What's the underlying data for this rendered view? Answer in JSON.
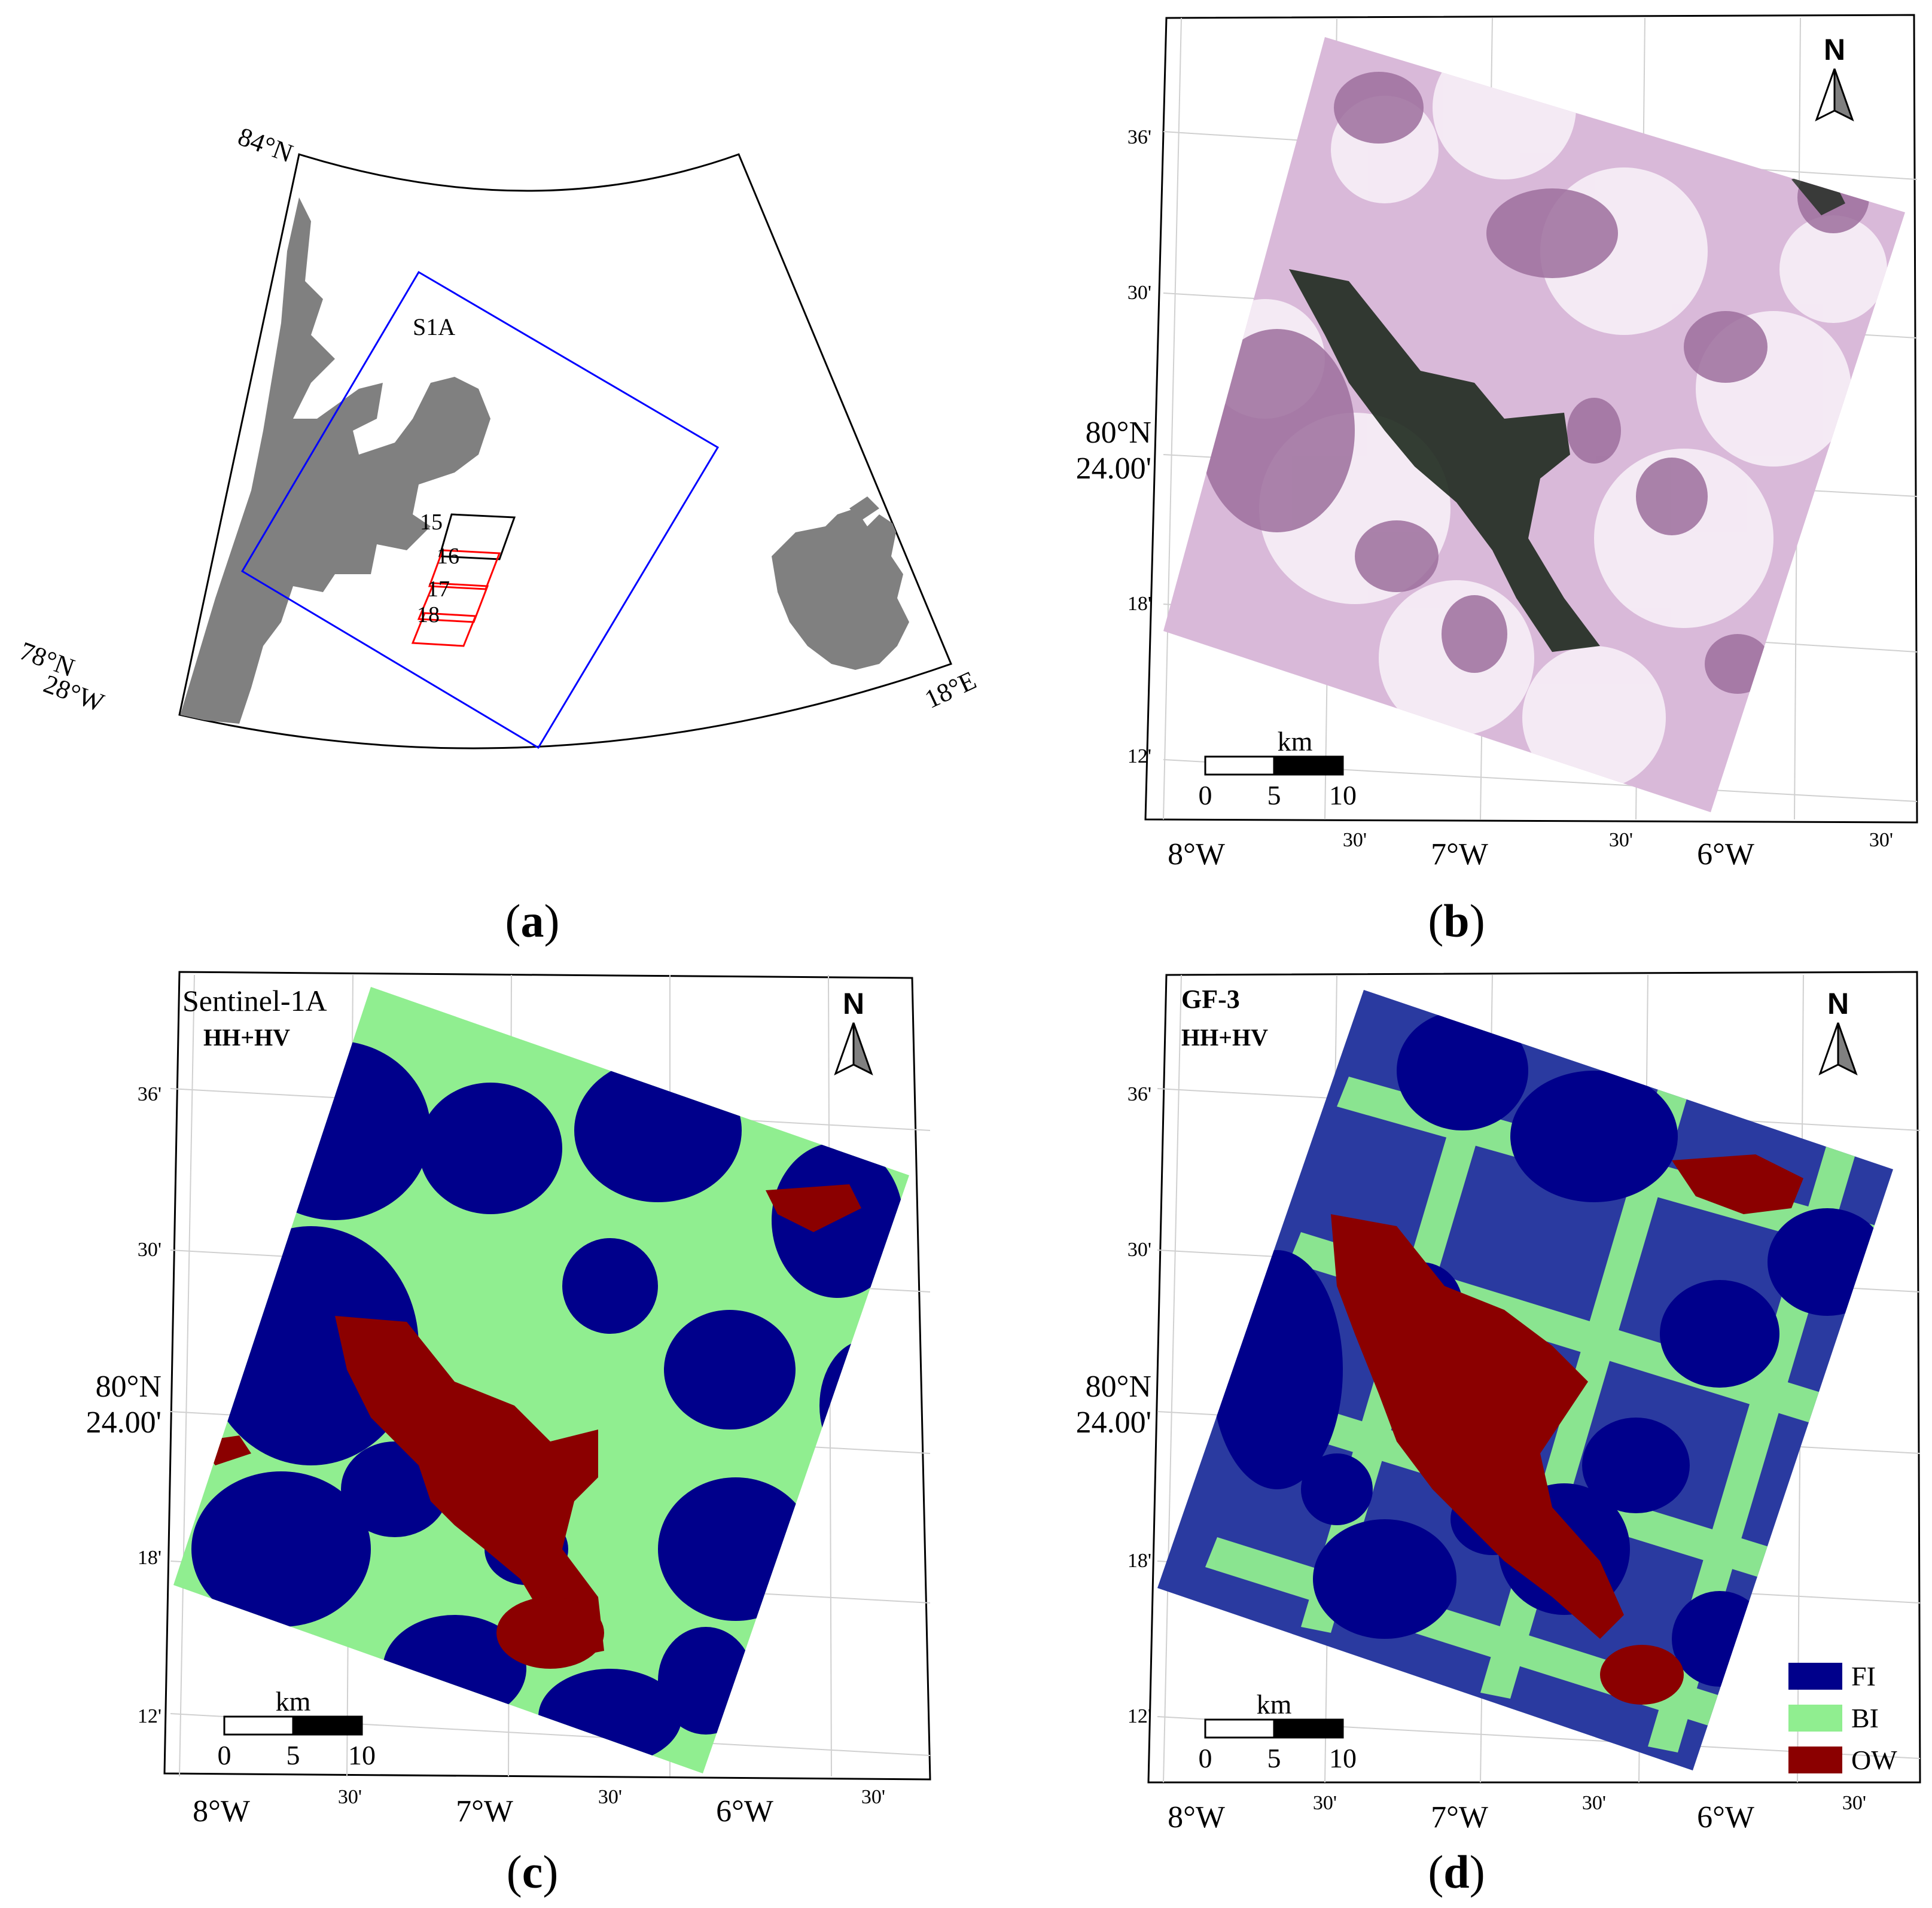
{
  "panels": {
    "a": {
      "label": "a",
      "lat_top": "84°N",
      "lat_bottom": "78°N",
      "lon_left": "28°W",
      "lon_right": "18°E",
      "footprint_label": "S1A",
      "gf3_scenes": [
        "15",
        "16",
        "17",
        "18"
      ],
      "colors": {
        "land": "#808080",
        "s1a_frame": "#0000ff",
        "scene_first": "#000000",
        "scene_rest": "#ff0000"
      }
    },
    "b": {
      "label": "b",
      "north": "N",
      "lat_ticks": [
        "36'",
        "30'",
        "18'",
        "12'"
      ],
      "lat_major_line1": "80°N",
      "lat_major_line2": "24.00'",
      "lon_ticks": [
        "8°W",
        "30'",
        "7°W",
        "30'",
        "6°W",
        "30'"
      ],
      "scalebar": {
        "unit": "km",
        "ticks": [
          "0",
          "5",
          "10"
        ]
      }
    },
    "c": {
      "label": "c",
      "north": "N",
      "title": "Sentinel-1A",
      "subtitle": "HH+HV",
      "lat_ticks": [
        "36'",
        "30'",
        "18'",
        "12'"
      ],
      "lat_major_line1": "80°N",
      "lat_major_line2": "24.00'",
      "lon_ticks": [
        "8°W",
        "30'",
        "7°W",
        "30'",
        "6°W",
        "30'"
      ],
      "scalebar": {
        "unit": "km",
        "ticks": [
          "0",
          "5",
          "10"
        ]
      }
    },
    "d": {
      "label": "d",
      "north": "N",
      "title": "GF-3",
      "subtitle": "HH+HV",
      "lat_ticks": [
        "36'",
        "30'",
        "18'",
        "12'"
      ],
      "lat_major_line1": "80°N",
      "lat_major_line2": "24.00'",
      "lon_ticks": [
        "8°W",
        "30'",
        "7°W",
        "30'",
        "6°W",
        "30'"
      ],
      "scalebar": {
        "unit": "km",
        "ticks": [
          "0",
          "5",
          "10"
        ]
      },
      "legend": [
        {
          "label": "FI",
          "color": "#00008b"
        },
        {
          "label": "BI",
          "color": "#90ee90"
        },
        {
          "label": "OW",
          "color": "#8b0000"
        }
      ]
    }
  },
  "class_colors": {
    "FI": "#00008b",
    "BI": "#90ee90",
    "OW": "#8b0000",
    "sar_bright": "#f4e6f4",
    "sar_mid": "#b48ab4",
    "sar_dark": "#2a1a2a",
    "sar_green": "#1f4a2a"
  }
}
